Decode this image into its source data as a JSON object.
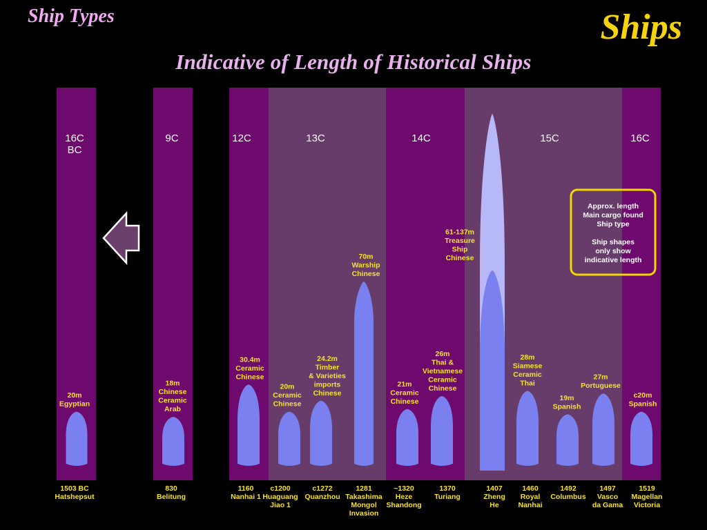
{
  "header": {
    "section_title": "Ship Types",
    "page_title": "Ships",
    "chart_title": "Indicative of Length of Historical Ships"
  },
  "colors": {
    "band_dark": "#6e0a6e",
    "band_light": "#673c6a",
    "ship": "#7a80f0",
    "ship_treasure": "#b6b8f8",
    "label_yellow": "#f5e22a",
    "legend_border": "#f0d800",
    "legend_text": "#ffffff",
    "century_text": "#ffffff"
  },
  "legend": {
    "lines": [
      "Approx. length",
      "Main cargo found",
      "Ship type",
      "",
      "Ship shapes",
      "only show",
      "indicative length"
    ]
  },
  "chart_data": {
    "type": "bar",
    "title": "Indicative of Length of Historical Ships",
    "centuries": [
      {
        "label": [
          "16C",
          "BC"
        ]
      },
      {
        "label": [
          "9C"
        ]
      },
      {
        "label": [
          "12C"
        ]
      },
      {
        "label": [
          "13C"
        ]
      },
      {
        "label": [
          "14C"
        ]
      },
      {
        "label": [
          "15C"
        ]
      },
      {
        "label": [
          "16C"
        ]
      }
    ],
    "ships": [
      {
        "length_m": 20,
        "info": [
          "20m",
          "Egyptian"
        ],
        "year_site": [
          "1503 BC",
          "Hatshepsut"
        ]
      },
      {
        "length_m": 18,
        "info": [
          "18m",
          "Chinese",
          "Ceramic",
          "Arab"
        ],
        "year_site": [
          "830",
          "Belitung"
        ]
      },
      {
        "length_m": 30.4,
        "info": [
          "30.4m",
          "Ceramic",
          "Chinese"
        ],
        "year_site": [
          "1160",
          "Nanhai 1"
        ]
      },
      {
        "length_m": 20,
        "info": [
          "20m",
          "Ceramic",
          "Chinese"
        ],
        "year_site": [
          "c1200",
          "Huaguang",
          "Jiao 1"
        ]
      },
      {
        "length_m": 24.2,
        "info": [
          "24.2m",
          "Timber",
          "& Varieties",
          "imports",
          "Chinese"
        ],
        "year_site": [
          "c1272",
          "Quanzhou"
        ]
      },
      {
        "length_m": 70,
        "info": [
          "70m",
          "Warship",
          "Chinese"
        ],
        "year_site": [
          "1281",
          "Takashima",
          "Mongol",
          "Invasion"
        ]
      },
      {
        "length_m": 21,
        "info": [
          "21m",
          "Ceramic",
          "Chinese"
        ],
        "year_site": [
          "~1320",
          "Heze",
          "Shandong"
        ]
      },
      {
        "length_m": 26,
        "info": [
          "26m",
          "Thai &",
          "Vietnamese",
          "Ceramic",
          "Chinese"
        ],
        "year_site": [
          "1370",
          "Turiang"
        ]
      },
      {
        "length_m": 61,
        "length_max_m": 137,
        "info": [
          "61-137m",
          "Treasure",
          "Ship",
          "Chinese"
        ],
        "year_site": [
          "1407",
          "Zheng",
          "He"
        ]
      },
      {
        "length_m": 28,
        "info": [
          "28m",
          "Siamese",
          "Ceramic",
          "Thai"
        ],
        "year_site": [
          "1460",
          "Royal",
          "Nanhai"
        ]
      },
      {
        "length_m": 19,
        "info": [
          "19m",
          "Spanish"
        ],
        "year_site": [
          "1492",
          "Columbus"
        ]
      },
      {
        "length_m": 27,
        "info": [
          "27m",
          "Portuguese"
        ],
        "year_site": [
          "1497",
          "Vasco",
          "da Gama"
        ]
      },
      {
        "length_m": 20,
        "info": [
          "c20m",
          "Spanish"
        ],
        "year_site": [
          "1519",
          "Magellan",
          "Victoria"
        ]
      }
    ]
  }
}
